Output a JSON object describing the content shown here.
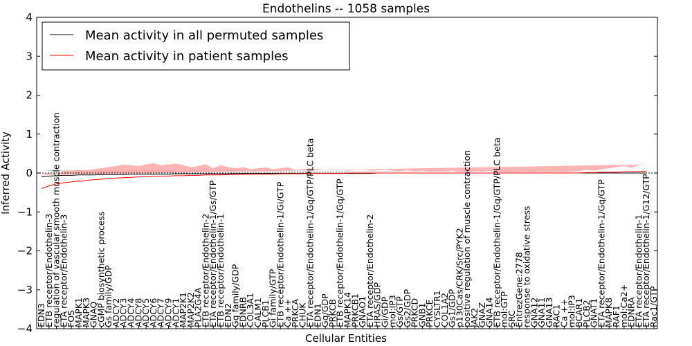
{
  "chart_data": {
    "type": "line",
    "title": "Endothelins -- 1058 samples",
    "xlabel": "Cellular Entities",
    "ylabel": "Inferred Activity",
    "ylim": [
      -4,
      4
    ],
    "yticks": [
      "−4",
      "−3",
      "−2",
      "−1",
      "0",
      "1",
      "2",
      "3",
      "4"
    ],
    "ytick_values": [
      -4,
      -3,
      -2,
      -1,
      0,
      1,
      2,
      3,
      4
    ],
    "legend": {
      "placement": "top-left",
      "entries": [
        {
          "label": "Mean activity in all permuted samples",
          "color": "#000000"
        },
        {
          "label": "Mean activity in patient samples",
          "color": "#ff0000"
        }
      ]
    },
    "series_colors": {
      "patient": "#ff0000",
      "patient_band": "#ff9999",
      "permuted": "#000000",
      "permuted_band": "#bbbbbb"
    },
    "categories": [
      "EDN3",
      "ETB receptor/Endothelin-3",
      "regulation of vascular smooth muscle contraction",
      "ETA receptor/Endothelin-3",
      "FOS",
      "MAPK1",
      "MAPK3",
      "GNAQ",
      "cGMP biosynthetic process",
      "Gs family/GDP",
      "ADCY2",
      "ADCY3",
      "ADCY4",
      "ADCY8",
      "ADCY5",
      "ADCY6",
      "ADCY7",
      "ADCY9",
      "ADCY1",
      "MAP2K1",
      "MAP2K2",
      "PLA2G4A",
      "ETB receptor/Endothelin-2",
      "ETA receptor/Endothelin-1/Gs/GTP",
      "ETB receptor/Endothelin-1",
      "EDN2",
      "Gq family/GDP",
      "EDNRB",
      "COL3A1",
      "CALM1",
      "PLCB1",
      "Gi family/GTP",
      "ETB receptor/Endothelin-1/Gi/GTP",
      "Ca ++",
      "PRKCA",
      "CHUK",
      "ETA receptor/Endothelin-1/Gq/GTP/PLC beta",
      "EDN1",
      "Gq/GDP",
      "PRKCB",
      "ETB receptor/Endothelin-1/Gq/GTP",
      "MAPK14",
      "PRKCB1",
      "GNAO1",
      "ETA receptor/Endothelin-2",
      "HRAS/GDP",
      "Gi/GDP",
      "mol:IP3",
      "Gs/GTP",
      "Gs2/GDP",
      "PRKCD",
      "GNB1",
      "PRKCE",
      "CYSLTR1",
      "COL1A2",
      "Gs1/GDP",
      "p130Cas/CRK/Src/PYK2",
      "positive regulation of muscle contraction",
      "JAK2",
      "GNAZ",
      "GNA14",
      "ETB receptor/Endothelin-1/Gq/GTP/PLC beta",
      "mol:GTP",
      "SRC",
      "EntrezGene:2778",
      "response to oxidative stress",
      "GNA12",
      "GNA11",
      "GNA13",
      "RAC1",
      "Ca ++",
      "mol:IP3",
      "BCAR1",
      "PLCB2",
      "GNAT1",
      "ETA receptor/Endothelin-1/Gq/GTP",
      "MAPK8",
      "RAF1",
      "mol:Ca2+",
      "EDNRA",
      "ETA receptor/Endothelin-1",
      "ETA receptor/Endothelin-1/G12/GTP",
      "Rac1/GTP"
    ],
    "x": [
      0,
      1
    ],
    "patient_mean": [
      -0.4,
      -0.33,
      -0.28,
      -0.25,
      -0.23,
      -0.21,
      -0.19,
      -0.17,
      -0.16,
      -0.14,
      -0.13,
      -0.12,
      -0.11,
      -0.1,
      -0.1,
      -0.09,
      -0.08,
      -0.08,
      -0.07,
      -0.07,
      -0.06,
      -0.06,
      -0.05,
      -0.05,
      -0.05,
      -0.04,
      -0.04,
      -0.04,
      -0.03,
      -0.03,
      -0.03,
      -0.03,
      -0.02,
      -0.02,
      -0.02,
      -0.02,
      -0.01,
      -0.01,
      -0.01,
      -0.01,
      -0.01,
      0.0,
      0.0,
      0.0,
      0.0,
      0.0,
      0.0,
      0.0,
      0.0,
      0.0,
      0.0,
      0.0,
      0.0,
      0.0,
      0.0,
      0.0,
      0.0,
      0.0,
      0.0,
      0.0,
      0.0,
      0.0,
      0.0,
      0.0,
      0.0,
      0.0,
      0.0,
      0.0,
      0.0,
      0.0,
      0.0,
      0.0,
      0.0,
      0.01,
      0.01,
      0.02,
      0.02,
      0.02,
      0.03,
      0.03,
      0.04,
      0.05
    ],
    "patient_upper": [
      -0.05,
      0.0,
      -0.05,
      0.05,
      0.05,
      0.08,
      0.06,
      0.1,
      0.12,
      0.15,
      0.18,
      0.22,
      0.2,
      0.18,
      0.22,
      0.25,
      0.2,
      0.22,
      0.24,
      0.2,
      0.15,
      0.18,
      0.22,
      0.12,
      0.2,
      0.15,
      0.12,
      0.15,
      0.1,
      0.12,
      0.14,
      0.1,
      0.12,
      0.15,
      0.08,
      0.1,
      0.12,
      0.1,
      0.08,
      0.1,
      0.08,
      0.06,
      0.08,
      0.1,
      0.06,
      0.07,
      0.08,
      0.06,
      0.05,
      0.07,
      0.05,
      0.06,
      0.04,
      0.05,
      0.04,
      0.06,
      0.03,
      0.03,
      0.05,
      0.04,
      0.06,
      0.02,
      0.02,
      0.02,
      0.02,
      0.02,
      0.02,
      0.03,
      0.02,
      0.03,
      0.02,
      0.03,
      0.05,
      0.08,
      0.06,
      0.1,
      0.12,
      0.15,
      0.18,
      0.14,
      0.2,
      0.22
    ],
    "patient_lower": [
      -0.7,
      -0.6,
      -0.55,
      -0.45,
      -0.45,
      -0.4,
      -0.45,
      -0.38,
      -0.42,
      -0.4,
      -0.38,
      -0.42,
      -0.38,
      -0.35,
      -0.38,
      -0.3,
      -0.33,
      -0.32,
      -0.3,
      -0.28,
      -0.3,
      -0.25,
      -0.3,
      -0.22,
      -0.25,
      -0.22,
      -0.28,
      -0.2,
      -0.22,
      -0.18,
      -0.2,
      -0.15,
      -0.18,
      -0.15,
      -0.12,
      -0.15,
      -0.12,
      -0.12,
      -0.1,
      -0.12,
      -0.1,
      -0.08,
      -0.1,
      -0.08,
      -0.07,
      -0.08,
      -0.06,
      -0.08,
      -0.06,
      -0.05,
      -0.07,
      -0.05,
      -0.06,
      -0.04,
      -0.05,
      -0.04,
      -0.04,
      -0.03,
      -0.04,
      -0.03,
      -0.05,
      -0.02,
      -0.02,
      -0.02,
      -0.02,
      -0.02,
      -0.02,
      -0.03,
      -0.02,
      -0.03,
      -0.02,
      -0.03,
      -0.04,
      -0.05,
      -0.05,
      -0.06,
      -0.07,
      -0.08,
      -0.09,
      -0.1,
      -0.1,
      -0.1
    ],
    "permuted_mean": [
      -0.1,
      -0.08,
      -0.07,
      -0.06,
      -0.06,
      -0.05,
      -0.05,
      -0.05,
      -0.04,
      -0.04,
      -0.04,
      -0.04,
      -0.03,
      -0.03,
      -0.03,
      -0.03,
      -0.03,
      -0.03,
      -0.02,
      -0.02,
      -0.02,
      -0.02,
      -0.02,
      -0.02,
      -0.02,
      -0.02,
      -0.01,
      -0.01,
      -0.01,
      -0.01,
      -0.01,
      -0.01,
      -0.01,
      -0.01,
      -0.01,
      -0.01,
      -0.01,
      -0.01,
      -0.01,
      -0.01,
      -0.01,
      -0.01,
      -0.01,
      -0.01,
      -0.01,
      0.0,
      0.0,
      0.0,
      0.0,
      0.0,
      0.0,
      0.0,
      0.0,
      0.0,
      0.0,
      0.0,
      0.0,
      0.0,
      0.0,
      0.0,
      0.0,
      0.0,
      0.0,
      0.0,
      0.0,
      0.0,
      0.0,
      0.0,
      0.0,
      0.0,
      0.0,
      0.0,
      0.0,
      0.0,
      0.0,
      0.0,
      0.0,
      0.0,
      0.0,
      0.0,
      0.0,
      0.0
    ],
    "permuted_upper": [
      0.08,
      0.05,
      0.04,
      0.04,
      0.04,
      0.03,
      0.03,
      0.03,
      0.03,
      0.03,
      0.03,
      0.03,
      0.03,
      0.03,
      0.03,
      0.03,
      0.03,
      0.03,
      0.03,
      0.03,
      0.03,
      0.03,
      0.03,
      0.03,
      0.03,
      0.03,
      0.03,
      0.03,
      0.03,
      0.03,
      0.03,
      0.03,
      0.03,
      0.03,
      0.03,
      0.03,
      0.03,
      0.03,
      0.03,
      0.03,
      0.03,
      0.03,
      0.03,
      0.03,
      0.03,
      0.03,
      0.03,
      0.03,
      0.03,
      0.03,
      0.03,
      0.03,
      0.03,
      0.03,
      0.03,
      0.03,
      0.03,
      0.03,
      0.03,
      0.03,
      0.03,
      0.03,
      0.03,
      0.03,
      0.03,
      0.03,
      0.03,
      0.03,
      0.03,
      0.03,
      0.03,
      0.03,
      0.03,
      0.03,
      0.03,
      0.03,
      0.03,
      0.03,
      0.03,
      0.03,
      0.03,
      0.03
    ],
    "permuted_lower": [
      -0.25,
      -0.2,
      -0.18,
      -0.16,
      -0.15,
      -0.14,
      -0.13,
      -0.12,
      -0.12,
      -0.11,
      -0.11,
      -0.1,
      -0.1,
      -0.1,
      -0.1,
      -0.09,
      -0.09,
      -0.09,
      -0.09,
      -0.09,
      -0.08,
      -0.08,
      -0.08,
      -0.08,
      -0.08,
      -0.08,
      -0.07,
      -0.07,
      -0.07,
      -0.07,
      -0.07,
      -0.07,
      -0.07,
      -0.06,
      -0.06,
      -0.06,
      -0.06,
      -0.06,
      -0.06,
      -0.06,
      -0.06,
      -0.05,
      -0.05,
      -0.05,
      -0.05,
      -0.05,
      -0.05,
      -0.05,
      -0.05,
      -0.05,
      -0.05,
      -0.05,
      -0.05,
      -0.05,
      -0.05,
      -0.05,
      -0.05,
      -0.06,
      -0.06,
      -0.07,
      -0.08,
      -0.08,
      -0.09,
      -0.09,
      -0.1,
      -0.1,
      -0.1,
      -0.09,
      -0.08,
      -0.06,
      -0.05,
      -0.05,
      -0.05,
      -0.05,
      -0.05,
      -0.05,
      -0.05,
      -0.05,
      -0.05,
      -0.05,
      -0.05,
      -0.05
    ]
  }
}
